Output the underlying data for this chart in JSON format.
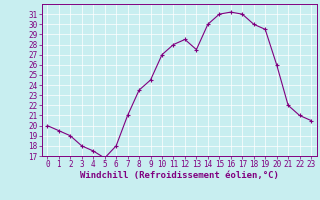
{
  "hours": [
    0,
    1,
    2,
    3,
    4,
    5,
    6,
    7,
    8,
    9,
    10,
    11,
    12,
    13,
    14,
    15,
    16,
    17,
    18,
    19,
    20,
    21,
    22,
    23
  ],
  "values": [
    20,
    19.5,
    19,
    18,
    17.5,
    16.8,
    18,
    21,
    23.5,
    24.5,
    27,
    28,
    28.5,
    27.5,
    30,
    31,
    31.2,
    31,
    30,
    29.5,
    26,
    22,
    21,
    20.5
  ],
  "line_color": "#800080",
  "marker": "+",
  "marker_color": "#800080",
  "bg_color": "#c8eef0",
  "grid_color": "#b0dde0",
  "xlabel": "Windchill (Refroidissement éolien,°C)",
  "ylim": [
    17,
    32
  ],
  "xlim": [
    -0.5,
    23.5
  ],
  "yticks": [
    17,
    18,
    19,
    20,
    21,
    22,
    23,
    24,
    25,
    26,
    27,
    28,
    29,
    30,
    31
  ],
  "xticks": [
    0,
    1,
    2,
    3,
    4,
    5,
    6,
    7,
    8,
    9,
    10,
    11,
    12,
    13,
    14,
    15,
    16,
    17,
    18,
    19,
    20,
    21,
    22,
    23
  ],
  "axis_color": "#800080",
  "tick_color": "#800080",
  "label_fontsize": 6.5,
  "tick_fontsize": 5.5
}
